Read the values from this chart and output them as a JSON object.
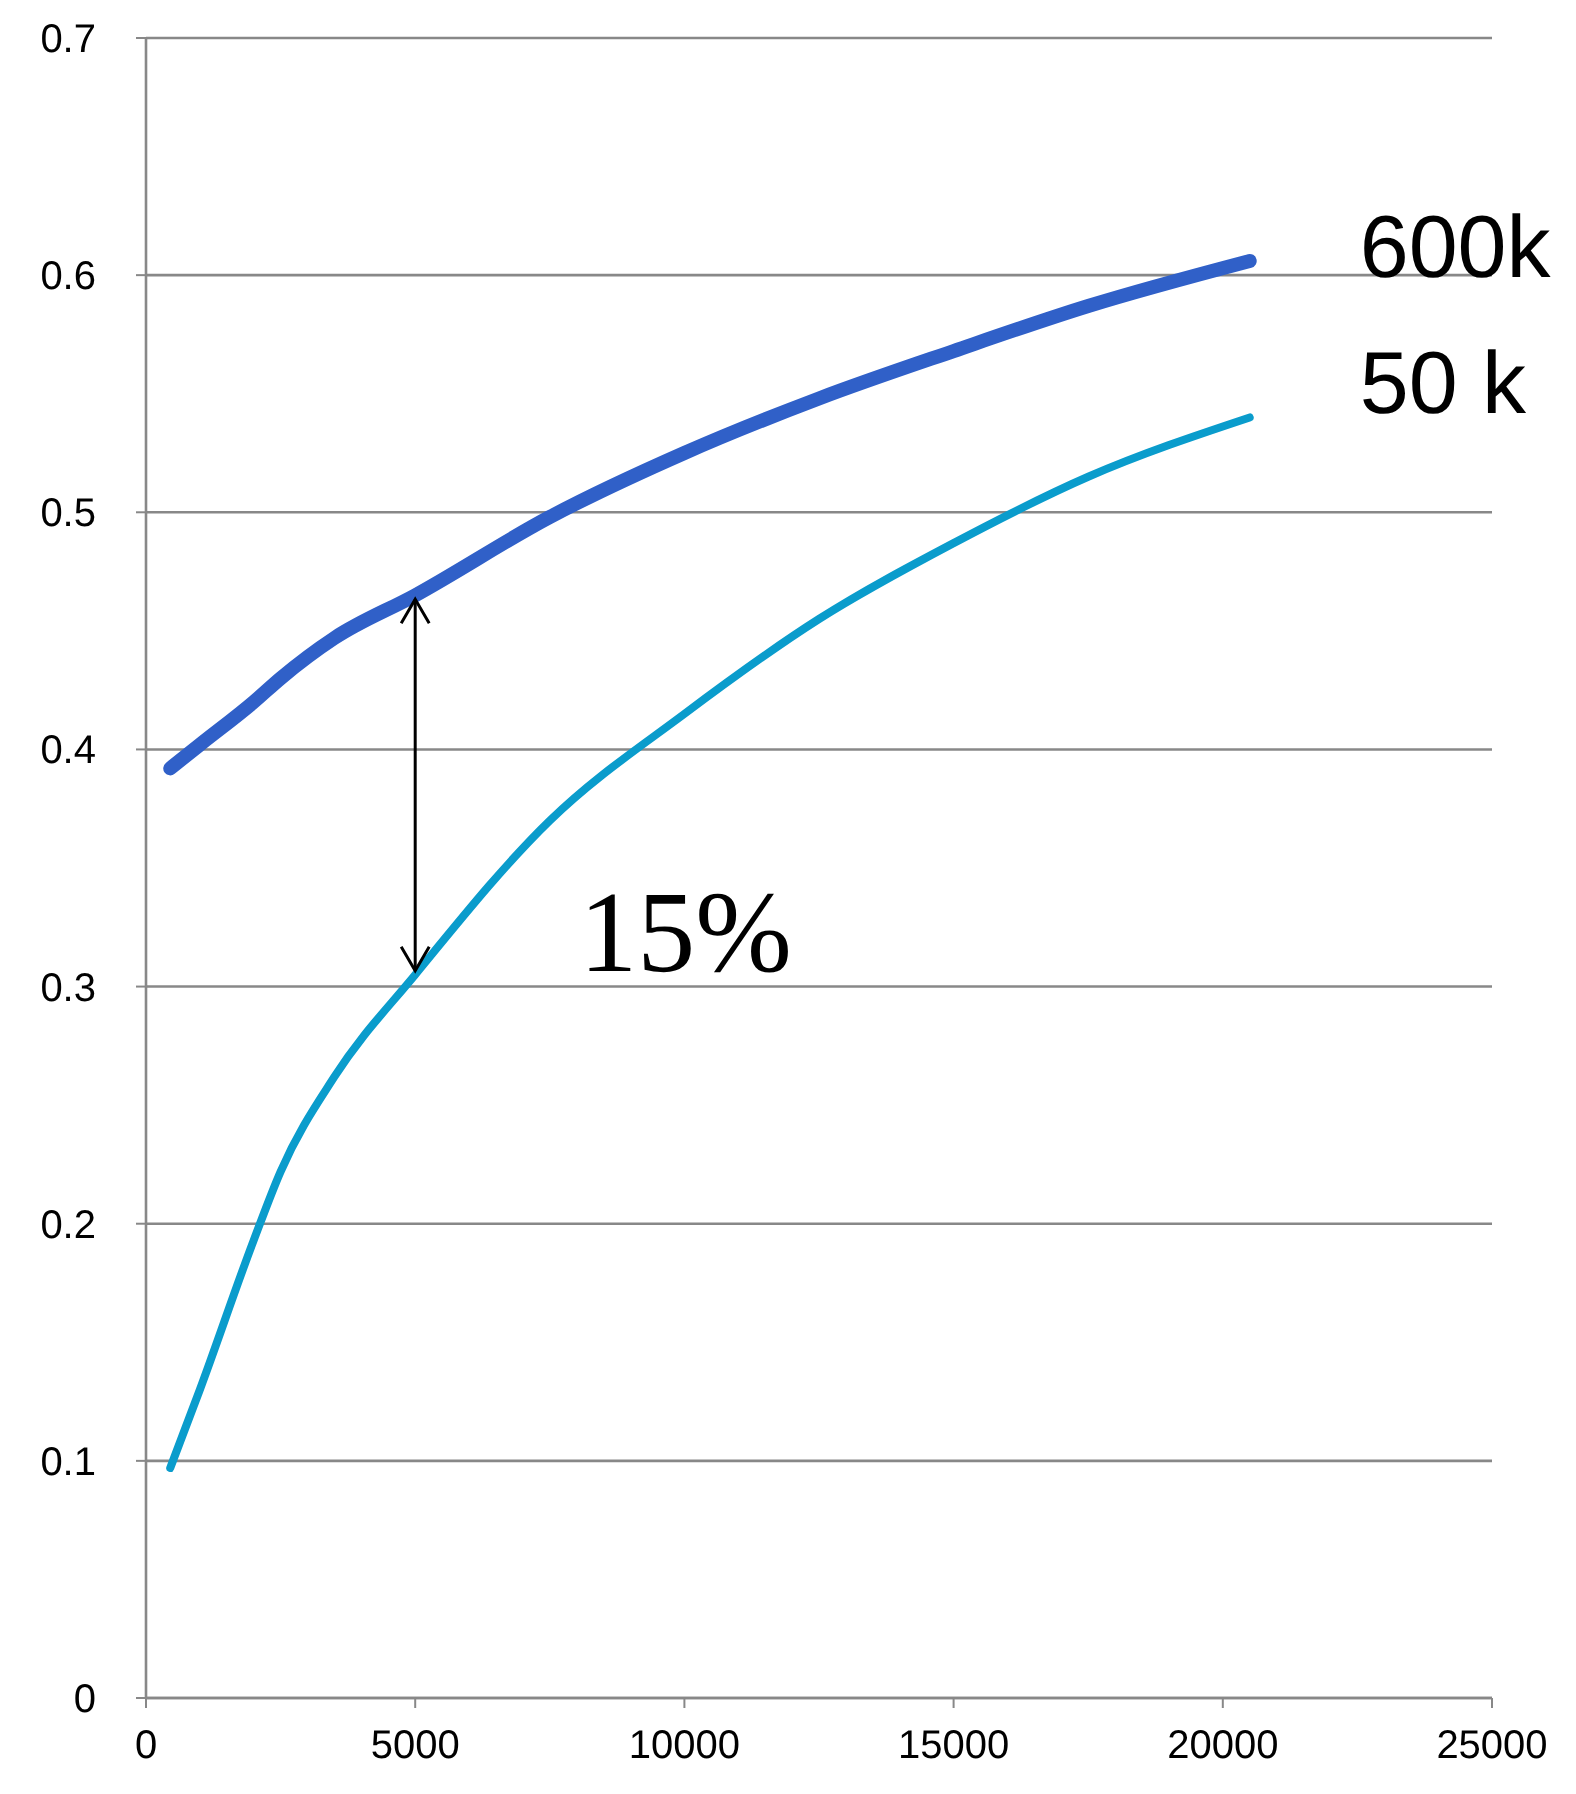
{
  "chart_data": {
    "type": "line",
    "x": [
      450,
      1000,
      2000,
      2500,
      3500,
      5000,
      7500,
      10000,
      12500,
      15000,
      17500,
      20500
    ],
    "series": [
      {
        "name": "600k",
        "color": "#3060c8",
        "values": [
          0.392,
          0.402,
          0.42,
          0.43,
          0.447,
          0.465,
          0.498,
          0.525,
          0.548,
          0.568,
          0.587,
          0.606
        ]
      },
      {
        "name": "50 k",
        "color": "#0a9ccc",
        "values": [
          0.097,
          0.13,
          0.193,
          0.222,
          0.262,
          0.305,
          0.37,
          0.415,
          0.455,
          0.487,
          0.515,
          0.54
        ]
      }
    ],
    "xlim": [
      0,
      25000
    ],
    "xticks": [
      0,
      5000,
      10000,
      15000,
      20000,
      25000
    ],
    "ylim": [
      0,
      0.7
    ],
    "yticks": [
      0,
      0.1,
      0.2,
      0.3,
      0.4,
      0.5,
      0.6,
      0.7
    ],
    "grid": "y",
    "marker": "none",
    "line_style": "solid",
    "annotations": [
      {
        "text": "15%",
        "x": 5000,
        "y": 0.305
      }
    ]
  }
}
